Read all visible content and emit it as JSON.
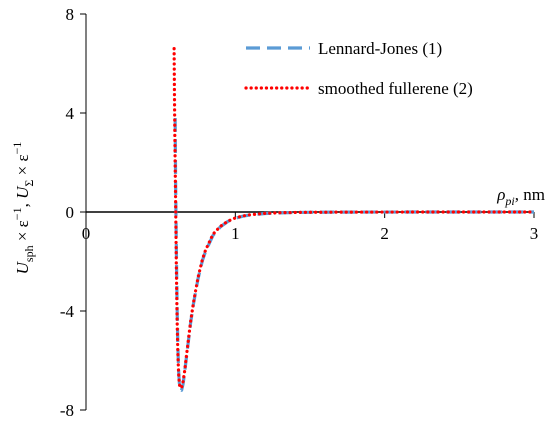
{
  "chart_data": {
    "type": "line",
    "title": "",
    "xlabel": "ρpi, nm",
    "xlabel_parts": {
      "symbol": "ρ",
      "subscript": "pi",
      "unit": ", nm"
    },
    "ylabel": "Usph × ε−1, UΣ × ε−1",
    "ylabel_parts": {
      "a_symbol": "U",
      "a_sub": "sph",
      "a_mid": " × ε",
      "a_sup": "−1",
      "sep": ",  ",
      "b_symbol": "U",
      "b_sub": "Σ",
      "b_mid": " × ε",
      "b_sup": "−1"
    },
    "xlim": [
      0,
      3
    ],
    "ylim": [
      -8,
      8
    ],
    "x_ticks": [
      "0",
      "1",
      "2",
      "3"
    ],
    "y_ticks": [
      "8",
      "4",
      "0",
      "-4",
      "-8"
    ],
    "x_tick_values": [
      0,
      1,
      2,
      3
    ],
    "y_tick_values": [
      8,
      4,
      0,
      -4,
      -8
    ],
    "grid": false,
    "legend_position": "top-right",
    "series": [
      {
        "name": "Lennard-Jones (1)",
        "style": "dashed",
        "color": "#5b9bd5",
        "x": [
          0.597,
          0.6,
          0.605,
          0.61,
          0.615,
          0.62,
          0.625,
          0.63,
          0.64,
          0.65,
          0.66,
          0.67,
          0.68,
          0.7,
          0.72,
          0.75,
          0.78,
          0.8,
          0.85,
          0.9,
          0.95,
          1.0,
          1.05,
          1.1,
          1.2,
          1.3,
          1.4,
          1.5,
          1.7,
          2.0,
          2.5,
          3.0
        ],
        "y": [
          3.8,
          1.2,
          -1.5,
          -3.8,
          -5.4,
          -6.4,
          -6.9,
          -7.15,
          -7.2,
          -6.95,
          -6.5,
          -6.0,
          -5.5,
          -4.5,
          -3.7,
          -2.7,
          -1.95,
          -1.6,
          -0.95,
          -0.6,
          -0.38,
          -0.25,
          -0.17,
          -0.12,
          -0.06,
          -0.035,
          -0.02,
          -0.012,
          -0.005,
          -0.002,
          0.0,
          0.0
        ]
      },
      {
        "name": "smoothed fullerene (2)",
        "style": "dotted",
        "color": "#ff0000",
        "x": [
          0.59,
          0.592,
          0.595,
          0.6,
          0.605,
          0.61,
          0.615,
          0.62,
          0.625,
          0.63,
          0.64,
          0.65,
          0.66,
          0.67,
          0.68,
          0.7,
          0.72,
          0.75,
          0.78,
          0.8,
          0.85,
          0.9,
          0.95,
          1.0,
          1.05,
          1.1,
          1.2,
          1.3,
          1.4,
          1.5,
          1.7,
          2.0,
          2.5,
          3.0
        ],
        "y": [
          6.6,
          5.0,
          3.0,
          0.5,
          -2.2,
          -4.3,
          -5.7,
          -6.5,
          -6.95,
          -7.1,
          -7.1,
          -6.85,
          -6.45,
          -5.95,
          -5.45,
          -4.45,
          -3.65,
          -2.65,
          -1.9,
          -1.55,
          -0.9,
          -0.58,
          -0.37,
          -0.24,
          -0.16,
          -0.11,
          -0.055,
          -0.03,
          -0.018,
          -0.011,
          -0.005,
          -0.002,
          0.0,
          0.0
        ]
      }
    ]
  }
}
